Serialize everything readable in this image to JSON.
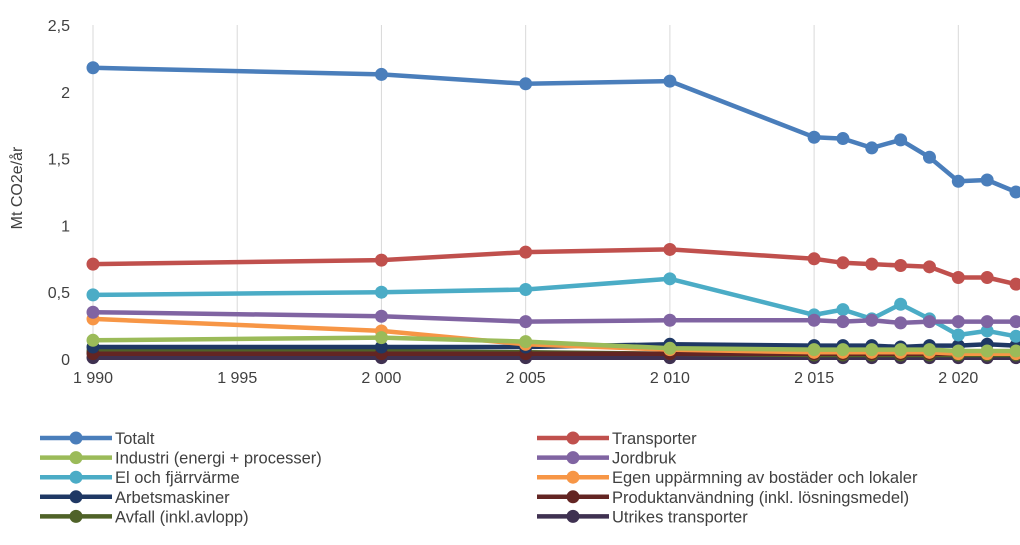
{
  "chart_data": {
    "type": "line",
    "ylabel": "Mt CO2e/år",
    "ylim": [
      0,
      2.5
    ],
    "yticks": [
      "0",
      "0,5",
      "1",
      "1,5",
      "2",
      "2,5"
    ],
    "ytick_values": [
      0,
      0.5,
      1,
      1.5,
      2,
      2.5
    ],
    "xlim": [
      1990,
      2022
    ],
    "xticks": [
      "1 990",
      "1 995",
      "2 000",
      "2 005",
      "2 010",
      "2 015",
      "2 020"
    ],
    "xtick_values": [
      1990,
      1995,
      2000,
      2005,
      2010,
      2015,
      2020
    ],
    "x": [
      1990,
      2000,
      2005,
      2010,
      2015,
      2016,
      2017,
      2018,
      2019,
      2020,
      2021,
      2022
    ],
    "grid": "vertical",
    "legend_position": "bottom",
    "series": [
      {
        "name": "Totalt",
        "color": "#4a7ebb",
        "values": [
          2.18,
          2.13,
          2.06,
          2.08,
          1.66,
          1.65,
          1.58,
          1.64,
          1.51,
          1.33,
          1.34,
          1.25
        ]
      },
      {
        "name": "Transporter",
        "color": "#c0504d",
        "values": [
          0.71,
          0.74,
          0.8,
          0.82,
          0.75,
          0.72,
          0.71,
          0.7,
          0.69,
          0.61,
          0.61,
          0.56
        ]
      },
      {
        "name": "Industri (energi + processer)",
        "color": "#9bbb59",
        "values": [
          0.14,
          0.16,
          0.13,
          0.08,
          0.07,
          0.07,
          0.07,
          0.07,
          0.07,
          0.06,
          0.06,
          0.06
        ]
      },
      {
        "name": "Jordbruk",
        "color": "#8064a2",
        "values": [
          0.35,
          0.32,
          0.28,
          0.29,
          0.29,
          0.28,
          0.29,
          0.27,
          0.28,
          0.28,
          0.28,
          0.28
        ]
      },
      {
        "name": "El och fjärrvärme",
        "color": "#4bacc6",
        "values": [
          0.48,
          0.5,
          0.52,
          0.6,
          0.33,
          0.37,
          0.3,
          0.41,
          0.3,
          0.18,
          0.21,
          0.17
        ]
      },
      {
        "name": "Egen uppärmning av bostäder och lokaler",
        "color": "#f79646",
        "values": [
          0.3,
          0.21,
          0.11,
          0.07,
          0.05,
          0.05,
          0.05,
          0.05,
          0.05,
          0.04,
          0.04,
          0.04
        ]
      },
      {
        "name": "Arbetsmaskiner",
        "color": "#1f3864",
        "values": [
          0.09,
          0.09,
          0.09,
          0.11,
          0.1,
          0.1,
          0.1,
          0.09,
          0.1,
          0.1,
          0.11,
          0.1
        ]
      },
      {
        "name": "Produktanvändning (inkl. lösningsmedel)",
        "color": "#632523",
        "values": [
          0.04,
          0.04,
          0.04,
          0.04,
          0.04,
          0.04,
          0.04,
          0.04,
          0.04,
          0.04,
          0.04,
          0.04
        ]
      },
      {
        "name": "Avfall (inkl.avlopp)",
        "color": "#4f6228",
        "values": [
          0.06,
          0.06,
          0.05,
          0.04,
          0.03,
          0.03,
          0.03,
          0.03,
          0.03,
          0.03,
          0.03,
          0.03
        ]
      },
      {
        "name": "Utrikes transporter",
        "color": "#3f3151",
        "values": [
          0.01,
          0.01,
          0.01,
          0.01,
          0.01,
          0.01,
          0.01,
          0.01,
          0.01,
          0.01,
          0.01,
          0.01
        ]
      }
    ]
  }
}
